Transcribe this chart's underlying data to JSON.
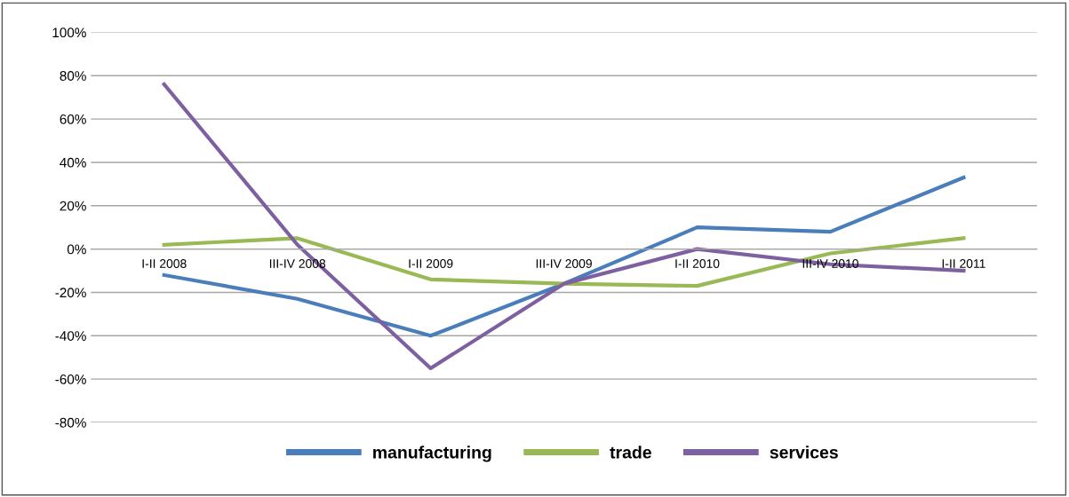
{
  "chart_data": {
    "type": "line",
    "categories": [
      "I-II 2008",
      "III-IV 2008",
      "I-II 2009",
      "III-IV 2009",
      "I-II 2010",
      "III-IV 2010",
      "I-II 2011"
    ],
    "series": [
      {
        "name": "manufacturing",
        "color": "#4a7ebb",
        "values": [
          -12,
          -23,
          -40,
          -16,
          10,
          8,
          33
        ]
      },
      {
        "name": "trade",
        "color": "#98b954",
        "values": [
          2,
          5,
          -14,
          -16,
          -17,
          -2,
          5
        ]
      },
      {
        "name": "services",
        "color": "#7d60a0",
        "values": [
          76,
          2,
          -55,
          -16,
          0,
          -7,
          -10
        ]
      }
    ],
    "ylim": [
      -80,
      100
    ],
    "yticks": [
      {
        "value": -80,
        "label": "-80%"
      },
      {
        "value": -60,
        "label": "-60%"
      },
      {
        "value": -40,
        "label": "-40%"
      },
      {
        "value": -20,
        "label": "-20%"
      },
      {
        "value": 0,
        "label": "0%"
      },
      {
        "value": 20,
        "label": "20%"
      },
      {
        "value": 40,
        "label": "40%"
      },
      {
        "value": 60,
        "label": "60%"
      },
      {
        "value": 80,
        "label": "80%"
      },
      {
        "value": 100,
        "label": "100%"
      }
    ],
    "grid": "y",
    "legend": "bottom",
    "marker": "none",
    "line_style": "solid"
  }
}
